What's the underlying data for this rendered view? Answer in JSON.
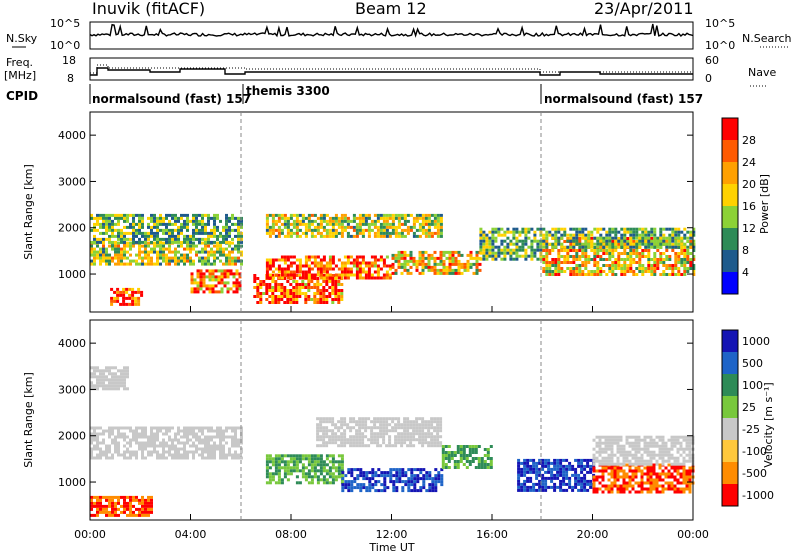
{
  "header": {
    "title": "Inuvik (fitACF)",
    "beam": "Beam 12",
    "date": "23/Apr/2011"
  },
  "noise_panel": {
    "left_label": "N.Sky",
    "right_label": "N.Search",
    "left_ticks": [
      "10^5",
      "10^0"
    ],
    "right_ticks": [
      "10^5",
      "10^0"
    ]
  },
  "freq_panel": {
    "left_label_1": "Freq.",
    "left_label_2": "[MHz]",
    "right_label": "Nave",
    "left_ticks": [
      "18",
      "8"
    ],
    "right_ticks": [
      "60",
      "0"
    ]
  },
  "cpid_panel": {
    "label": "CPID",
    "segments": [
      "normalsound (fast) 157",
      "themis 3300",
      "normalsound (fast) 157"
    ]
  },
  "x_axis": {
    "label": "Time UT",
    "ticks": [
      "00:00",
      "04:00",
      "08:00",
      "12:00",
      "16:00",
      "20:00",
      "00:00"
    ]
  },
  "power_panel": {
    "y_label": "Slant Range [km]",
    "y_ticks": [
      "4000",
      "3000",
      "2000",
      "1000"
    ],
    "cbar_label": "Power [dB]",
    "cbar_ticks": [
      "28",
      "24",
      "20",
      "16",
      "12",
      "8",
      "4"
    ],
    "cbar_colors": [
      "#ff0000",
      "#ff5a00",
      "#ffa000",
      "#ffd200",
      "#8cd236",
      "#2e8b57",
      "#1e5a8c",
      "#0000ff"
    ]
  },
  "velocity_panel": {
    "y_label": "Slant Range [km]",
    "y_ticks": [
      "4000",
      "3000",
      "2000",
      "1000"
    ],
    "cbar_label": "Velocity [m s⁻¹]",
    "cbar_ticks": [
      "1000",
      "500",
      "100",
      "25",
      "-25",
      "-100",
      "-500",
      "-1000"
    ],
    "cbar_colors": [
      "#1414b4",
      "#1e64c8",
      "#2e8b57",
      "#78c83c",
      "#c8c8c8",
      "#ffc83c",
      "#ff8c00",
      "#ff0000"
    ]
  },
  "chart_data": [
    {
      "type": "heatmap",
      "title": "Power [dB]",
      "xlabel": "Time UT",
      "ylabel": "Slant Range [km]",
      "xlim": [
        "00:00",
        "24:00"
      ],
      "ylim": [
        180,
        4500
      ],
      "bands": [
        {
          "t": [
            0.8,
            2.0
          ],
          "r": [
            350,
            700
          ],
          "level": 28
        },
        {
          "t": [
            0,
            6
          ],
          "r": [
            1200,
            1700
          ],
          "level": 16
        },
        {
          "t": [
            0,
            6
          ],
          "r": [
            1700,
            2300
          ],
          "level": 12
        },
        {
          "t": [
            4,
            6
          ],
          "r": [
            600,
            1100
          ],
          "level": 24
        },
        {
          "t": [
            6.5,
            10
          ],
          "r": [
            400,
            1000
          ],
          "level": 28
        },
        {
          "t": [
            7,
            12
          ],
          "r": [
            900,
            1400
          ],
          "level": 28
        },
        {
          "t": [
            7,
            14
          ],
          "r": [
            1800,
            2300
          ],
          "level": 16
        },
        {
          "t": [
            12,
            15.5
          ],
          "r": [
            1000,
            1500
          ],
          "level": 20
        },
        {
          "t": [
            15.5,
            18
          ],
          "r": [
            1300,
            2000
          ],
          "level": 12
        },
        {
          "t": [
            18,
            24
          ],
          "r": [
            1000,
            1800
          ],
          "level": 20
        },
        {
          "t": [
            18,
            24
          ],
          "r": [
            1600,
            2000
          ],
          "level": 12
        }
      ]
    },
    {
      "type": "heatmap",
      "title": "Velocity [m s⁻¹]",
      "xlabel": "Time UT",
      "ylabel": "Slant Range [km]",
      "xlim": [
        "00:00",
        "24:00"
      ],
      "ylim": [
        180,
        4500
      ],
      "bands": [
        {
          "t": [
            0,
            6
          ],
          "r": [
            1500,
            2200
          ],
          "level": 0
        },
        {
          "t": [
            0,
            2.5
          ],
          "r": [
            300,
            700
          ],
          "level": -500
        },
        {
          "t": [
            0,
            1.5
          ],
          "r": [
            3000,
            3500
          ],
          "level": 0
        },
        {
          "t": [
            7,
            10
          ],
          "r": [
            1000,
            1600
          ],
          "level": 100
        },
        {
          "t": [
            10,
            14
          ],
          "r": [
            800,
            1300
          ],
          "level": 1000
        },
        {
          "t": [
            9,
            14
          ],
          "r": [
            1800,
            2400
          ],
          "level": 0
        },
        {
          "t": [
            14,
            16
          ],
          "r": [
            1300,
            1800
          ],
          "level": 100
        },
        {
          "t": [
            17,
            20
          ],
          "r": [
            800,
            1500
          ],
          "level": 1000
        },
        {
          "t": [
            20,
            24
          ],
          "r": [
            800,
            1400
          ],
          "level": -500
        },
        {
          "t": [
            20,
            24
          ],
          "r": [
            1400,
            2000
          ],
          "level": 0
        }
      ]
    }
  ]
}
